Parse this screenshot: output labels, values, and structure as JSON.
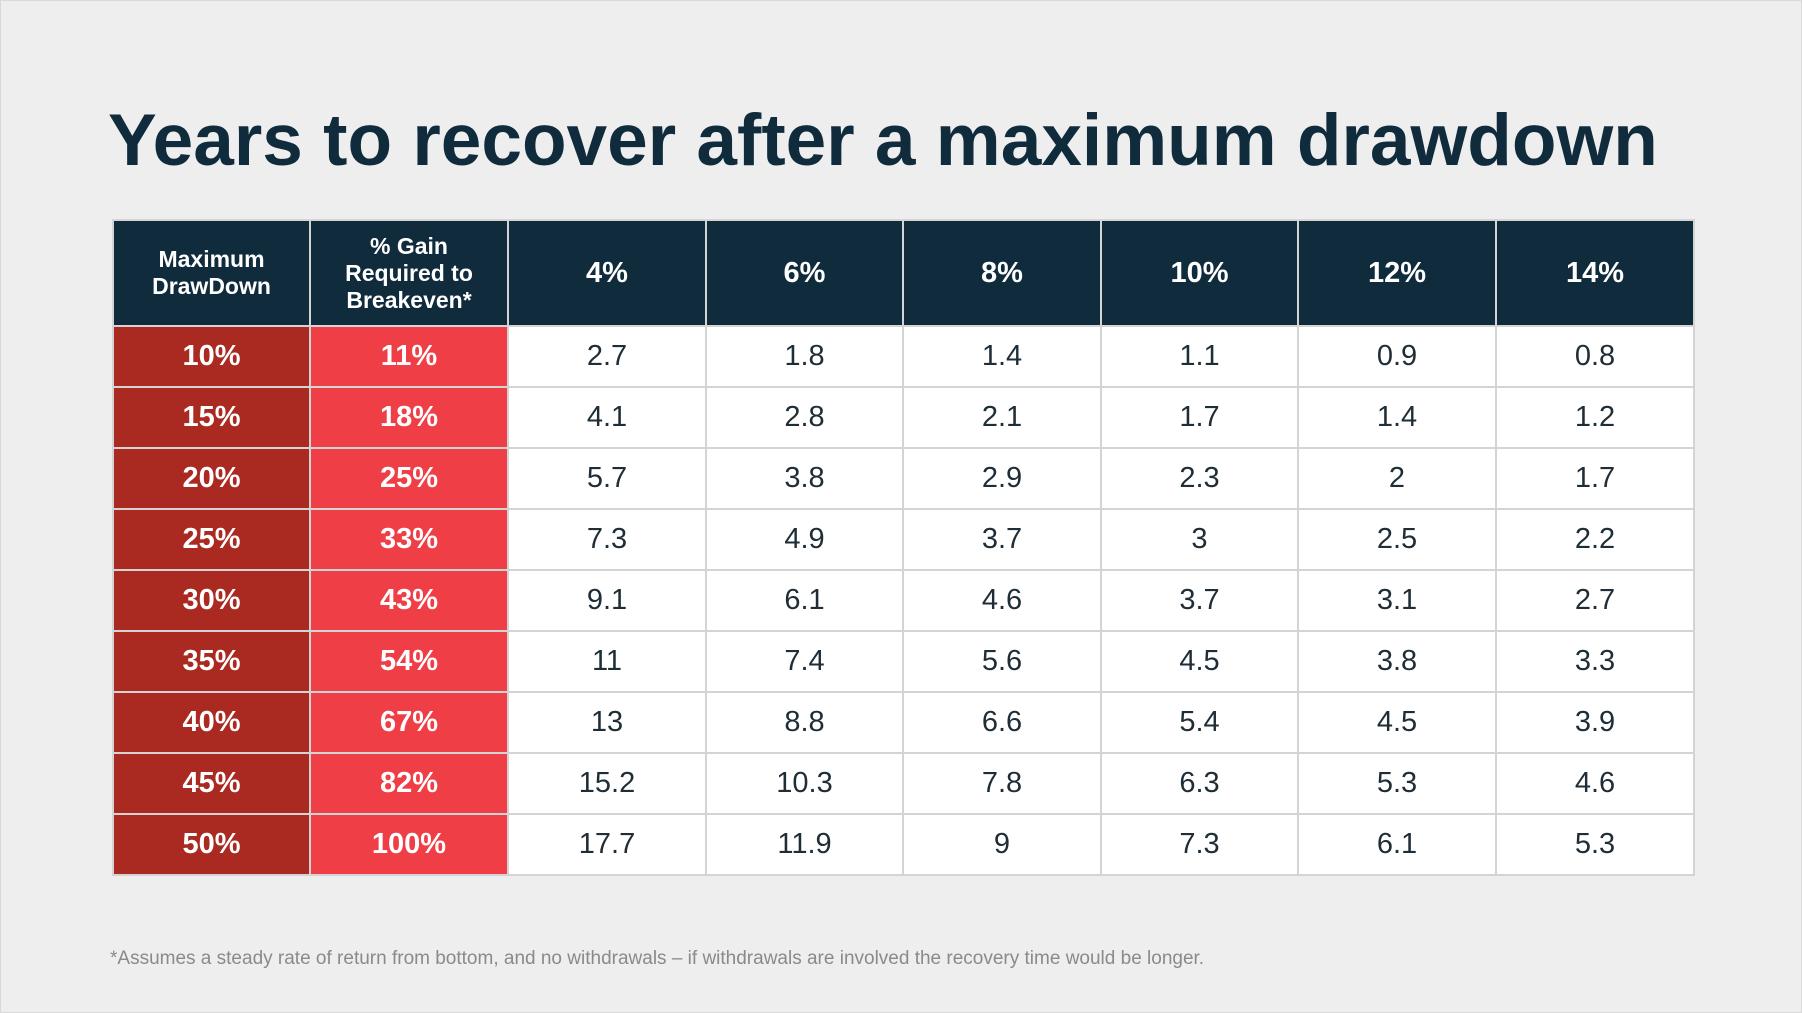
{
  "title": "Years to recover after a maximum drawdown",
  "table": {
    "headers": {
      "drawdown": [
        "Maximum",
        "DrawDown"
      ],
      "gain": [
        "% Gain",
        "Required to",
        "Breakeven*"
      ],
      "rates": [
        "4%",
        "6%",
        "8%",
        "10%",
        "12%",
        "14%"
      ]
    },
    "rows": [
      {
        "drawdown": "10%",
        "gain": "11%",
        "years": [
          "2.7",
          "1.8",
          "1.4",
          "1.1",
          "0.9",
          "0.8"
        ]
      },
      {
        "drawdown": "15%",
        "gain": "18%",
        "years": [
          "4.1",
          "2.8",
          "2.1",
          "1.7",
          "1.4",
          "1.2"
        ]
      },
      {
        "drawdown": "20%",
        "gain": "25%",
        "years": [
          "5.7",
          "3.8",
          "2.9",
          "2.3",
          "2",
          "1.7"
        ]
      },
      {
        "drawdown": "25%",
        "gain": "33%",
        "years": [
          "7.3",
          "4.9",
          "3.7",
          "3",
          "2.5",
          "2.2"
        ]
      },
      {
        "drawdown": "30%",
        "gain": "43%",
        "years": [
          "9.1",
          "6.1",
          "4.6",
          "3.7",
          "3.1",
          "2.7"
        ]
      },
      {
        "drawdown": "35%",
        "gain": "54%",
        "years": [
          "11",
          "7.4",
          "5.6",
          "4.5",
          "3.8",
          "3.3"
        ]
      },
      {
        "drawdown": "40%",
        "gain": "67%",
        "years": [
          "13",
          "8.8",
          "6.6",
          "5.4",
          "4.5",
          "3.9"
        ]
      },
      {
        "drawdown": "45%",
        "gain": "82%",
        "years": [
          "15.2",
          "10.3",
          "7.8",
          "6.3",
          "5.3",
          "4.6"
        ]
      },
      {
        "drawdown": "50%",
        "gain": "100%",
        "years": [
          "17.7",
          "11.9",
          "9",
          "7.3",
          "6.1",
          "5.3"
        ]
      }
    ]
  },
  "footnote": "*Assumes a steady rate of return from bottom, and no withdrawals – if withdrawals are involved the recovery time would be longer.",
  "colors": {
    "background": "#eeeeee",
    "title": "#0f2b3c",
    "header_bg": "#0f2b3c",
    "drawdown_col": "#aa2a22",
    "gain_col": "#ef3e46",
    "cell_text": "#1f2d36",
    "footnote": "#8a8a8a"
  }
}
